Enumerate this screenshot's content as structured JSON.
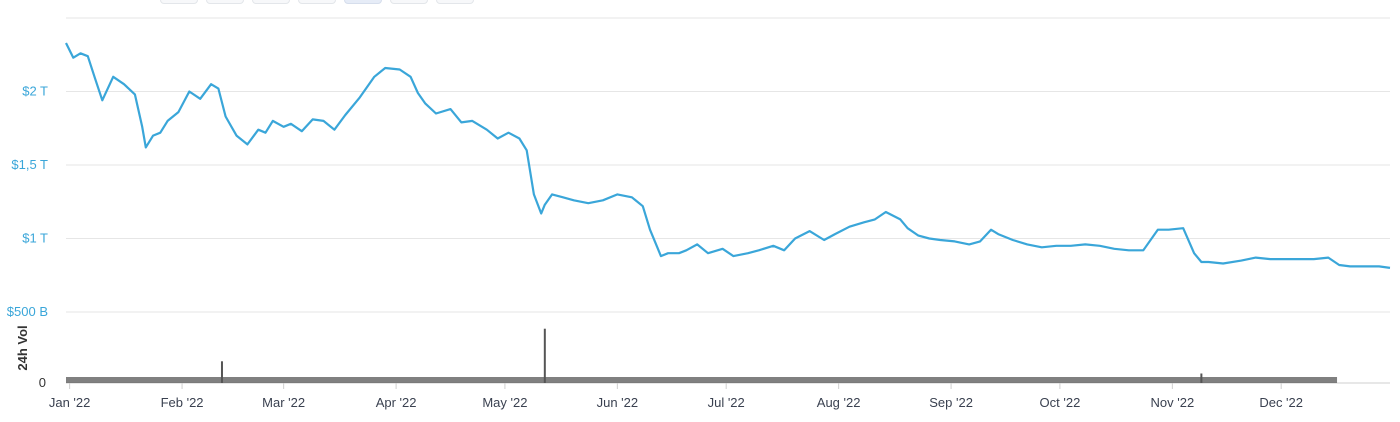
{
  "range_tabs": [
    "",
    "",
    "",
    "",
    "",
    "",
    ""
  ],
  "active_tab_index": 4,
  "chart_data": [
    {
      "type": "line",
      "color": "#3aa6d9",
      "y_tick_labels": [
        "$500 B",
        "$1 T",
        "$1,5 T",
        "$2 T"
      ],
      "y_tick_values": [
        500,
        1000,
        1500,
        2000
      ],
      "ylim": [
        500,
        2500
      ],
      "x_tick_labels": [
        "Jan '22",
        "Feb '22",
        "Mar '22",
        "Apr '22",
        "May '22",
        "Jun '22",
        "Jul '22",
        "Aug '22",
        "Sep '22",
        "Oct '22",
        "Nov '22",
        "Dec '22"
      ],
      "x_tick_dates": [
        "2022-01-01",
        "2022-02-01",
        "2022-03-01",
        "2022-04-01",
        "2022-05-01",
        "2022-06-01",
        "2022-07-01",
        "2022-08-01",
        "2022-09-01",
        "2022-10-01",
        "2022-11-01",
        "2022-12-01"
      ],
      "xlim": [
        "2021-12-31",
        "2022-12-31"
      ],
      "x": [
        "2021-12-31",
        "2022-01-02",
        "2022-01-04",
        "2022-01-06",
        "2022-01-08",
        "2022-01-10",
        "2022-01-13",
        "2022-01-16",
        "2022-01-19",
        "2022-01-21",
        "2022-01-22",
        "2022-01-24",
        "2022-01-26",
        "2022-01-28",
        "2022-01-31",
        "2022-02-03",
        "2022-02-06",
        "2022-02-09",
        "2022-02-11",
        "2022-02-13",
        "2022-02-16",
        "2022-02-19",
        "2022-02-22",
        "2022-02-24",
        "2022-02-26",
        "2022-03-01",
        "2022-03-03",
        "2022-03-06",
        "2022-03-09",
        "2022-03-12",
        "2022-03-15",
        "2022-03-18",
        "2022-03-22",
        "2022-03-26",
        "2022-03-29",
        "2022-04-02",
        "2022-04-05",
        "2022-04-07",
        "2022-04-09",
        "2022-04-12",
        "2022-04-16",
        "2022-04-19",
        "2022-04-22",
        "2022-04-26",
        "2022-04-29",
        "2022-05-02",
        "2022-05-05",
        "2022-05-07",
        "2022-05-09",
        "2022-05-11",
        "2022-05-12",
        "2022-05-14",
        "2022-05-17",
        "2022-05-20",
        "2022-05-24",
        "2022-05-28",
        "2022-06-01",
        "2022-06-05",
        "2022-06-08",
        "2022-06-10",
        "2022-06-12",
        "2022-06-13",
        "2022-06-15",
        "2022-06-18",
        "2022-06-20",
        "2022-06-23",
        "2022-06-26",
        "2022-06-30",
        "2022-07-03",
        "2022-07-07",
        "2022-07-10",
        "2022-07-14",
        "2022-07-17",
        "2022-07-20",
        "2022-07-24",
        "2022-07-28",
        "2022-07-31",
        "2022-08-04",
        "2022-08-08",
        "2022-08-11",
        "2022-08-14",
        "2022-08-18",
        "2022-08-20",
        "2022-08-23",
        "2022-08-26",
        "2022-08-29",
        "2022-09-02",
        "2022-09-06",
        "2022-09-09",
        "2022-09-12",
        "2022-09-14",
        "2022-09-18",
        "2022-09-22",
        "2022-09-26",
        "2022-09-30",
        "2022-10-04",
        "2022-10-08",
        "2022-10-12",
        "2022-10-16",
        "2022-10-20",
        "2022-10-24",
        "2022-10-28",
        "2022-10-31",
        "2022-11-04",
        "2022-11-07",
        "2022-11-09",
        "2022-11-11",
        "2022-11-15",
        "2022-11-20",
        "2022-11-24",
        "2022-11-28",
        "2022-12-02",
        "2022-12-06",
        "2022-12-10",
        "2022-12-14",
        "2022-12-17",
        "2022-12-20",
        "2022-12-24",
        "2022-12-28",
        "2022-12-31"
      ],
      "values": [
        2330,
        2230,
        2260,
        2240,
        2090,
        1940,
        2100,
        2050,
        1980,
        1760,
        1620,
        1700,
        1720,
        1800,
        1860,
        2000,
        1950,
        2050,
        2020,
        1830,
        1700,
        1640,
        1740,
        1720,
        1800,
        1760,
        1780,
        1730,
        1810,
        1800,
        1740,
        1840,
        1960,
        2100,
        2160,
        2150,
        2100,
        1990,
        1920,
        1850,
        1880,
        1790,
        1800,
        1740,
        1680,
        1720,
        1680,
        1600,
        1300,
        1170,
        1230,
        1300,
        1280,
        1260,
        1240,
        1260,
        1300,
        1280,
        1220,
        1060,
        940,
        880,
        900,
        900,
        920,
        960,
        900,
        930,
        880,
        900,
        920,
        950,
        920,
        1000,
        1050,
        990,
        1030,
        1080,
        1110,
        1130,
        1180,
        1130,
        1070,
        1020,
        1000,
        990,
        980,
        960,
        980,
        1060,
        1030,
        990,
        960,
        940,
        950,
        950,
        960,
        950,
        930,
        920,
        920,
        1060,
        1060,
        1070,
        900,
        840,
        840,
        830,
        850,
        870,
        860,
        860,
        860,
        860,
        870,
        820,
        810,
        810,
        810,
        800
      ],
      "series_name": ""
    },
    {
      "type": "bar",
      "color": "#555555",
      "ylabel": "24h Vol",
      "y_tick_labels": [
        "0"
      ],
      "y_tick_values": [
        0
      ],
      "ylim": [
        0,
        420
      ],
      "x": [
        "2022-02-12",
        "2022-05-12",
        "2022-11-09"
      ],
      "values": [
        160,
        400,
        70
      ]
    }
  ]
}
